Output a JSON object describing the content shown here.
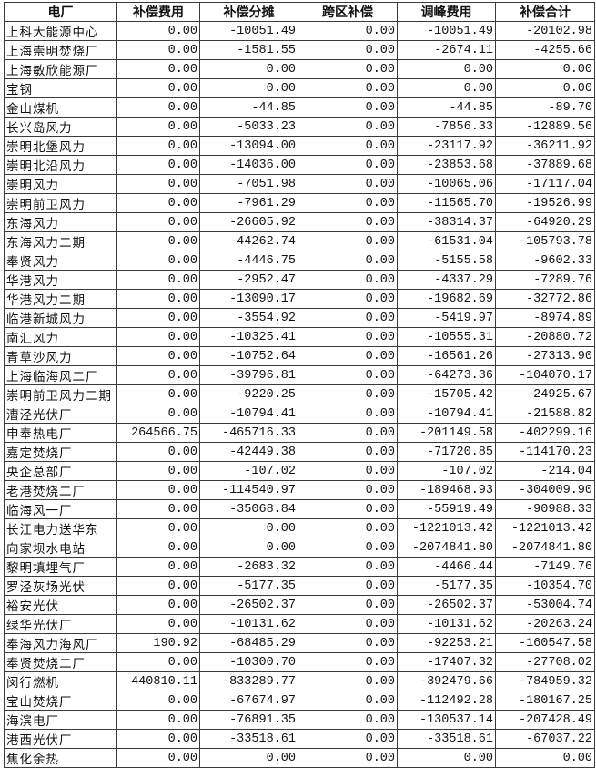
{
  "headers": [
    "电厂",
    "补偿费用",
    "补偿分摊",
    "跨区补偿",
    "调峰费用",
    "补偿合计"
  ],
  "rows": [
    [
      "上科大能源中心",
      "0.00",
      "-10051.49",
      "0.00",
      "-10051.49",
      "-20102.98"
    ],
    [
      "上海崇明焚烧厂",
      "0.00",
      "-1581.55",
      "0.00",
      "-2674.11",
      "-4255.66"
    ],
    [
      "上海敏欣能源厂",
      "0.00",
      "0.00",
      "0.00",
      "0.00",
      "0.00"
    ],
    [
      "宝钢",
      "0.00",
      "0.00",
      "0.00",
      "0.00",
      "0.00"
    ],
    [
      "金山煤机",
      "0.00",
      "-44.85",
      "0.00",
      "-44.85",
      "-89.70"
    ],
    [
      "长兴岛风力",
      "0.00",
      "-5033.23",
      "0.00",
      "-7856.33",
      "-12889.56"
    ],
    [
      "崇明北堡风力",
      "0.00",
      "-13094.00",
      "0.00",
      "-23117.92",
      "-36211.92"
    ],
    [
      "崇明北沿风力",
      "0.00",
      "-14036.00",
      "0.00",
      "-23853.68",
      "-37889.68"
    ],
    [
      "崇明风力",
      "0.00",
      "-7051.98",
      "0.00",
      "-10065.06",
      "-17117.04"
    ],
    [
      "崇明前卫风力",
      "0.00",
      "-7961.29",
      "0.00",
      "-11565.70",
      "-19526.99"
    ],
    [
      "东海风力",
      "0.00",
      "-26605.92",
      "0.00",
      "-38314.37",
      "-64920.29"
    ],
    [
      "东海风力二期",
      "0.00",
      "-44262.74",
      "0.00",
      "-61531.04",
      "-105793.78"
    ],
    [
      "奉贤风力",
      "0.00",
      "-4446.75",
      "0.00",
      "-5155.58",
      "-9602.33"
    ],
    [
      "华港风力",
      "0.00",
      "-2952.47",
      "0.00",
      "-4337.29",
      "-7289.76"
    ],
    [
      "华港风力二期",
      "0.00",
      "-13090.17",
      "0.00",
      "-19682.69",
      "-32772.86"
    ],
    [
      "临港新城风力",
      "0.00",
      "-3554.92",
      "0.00",
      "-5419.97",
      "-8974.89"
    ],
    [
      "南汇风力",
      "0.00",
      "-10325.41",
      "0.00",
      "-10555.31",
      "-20880.72"
    ],
    [
      "青草沙风力",
      "0.00",
      "-10752.64",
      "0.00",
      "-16561.26",
      "-27313.90"
    ],
    [
      "上海临海风二厂",
      "0.00",
      "-39796.81",
      "0.00",
      "-64273.36",
      "-104070.17"
    ],
    [
      "崇明前卫风力二期",
      "0.00",
      "-9220.25",
      "0.00",
      "-15705.42",
      "-24925.67"
    ],
    [
      "漕泾光伏厂",
      "0.00",
      "-10794.41",
      "0.00",
      "-10794.41",
      "-21588.82"
    ],
    [
      "申奉热电厂",
      "264566.75",
      "-465716.33",
      "0.00",
      "-201149.58",
      "-402299.16"
    ],
    [
      "嘉定焚烧厂",
      "0.00",
      "-42449.38",
      "0.00",
      "-71720.85",
      "-114170.23"
    ],
    [
      "央企总部厂",
      "0.00",
      "-107.02",
      "0.00",
      "-107.02",
      "-214.04"
    ],
    [
      "老港焚烧二厂",
      "0.00",
      "-114540.97",
      "0.00",
      "-189468.93",
      "-304009.90"
    ],
    [
      "临海风一厂",
      "0.00",
      "-35068.84",
      "0.00",
      "-55919.49",
      "-90988.33"
    ],
    [
      "长江电力送华东",
      "0.00",
      "0.00",
      "0.00",
      "-1221013.42",
      "-1221013.42"
    ],
    [
      "向家坝水电站",
      "0.00",
      "0.00",
      "0.00",
      "-2074841.80",
      "-2074841.80"
    ],
    [
      "黎明填埋气厂",
      "0.00",
      "-2683.32",
      "0.00",
      "-4466.44",
      "-7149.76"
    ],
    [
      "罗泾灰场光伏",
      "0.00",
      "-5177.35",
      "0.00",
      "-5177.35",
      "-10354.70"
    ],
    [
      "裕安光伏",
      "0.00",
      "-26502.37",
      "0.00",
      "-26502.37",
      "-53004.74"
    ],
    [
      "绿华光伏厂",
      "0.00",
      "-10131.62",
      "0.00",
      "-10131.62",
      "-20263.24"
    ],
    [
      "奉海风力海风厂",
      "190.92",
      "-68485.29",
      "0.00",
      "-92253.21",
      "-160547.58"
    ],
    [
      "奉贤焚烧二厂",
      "0.00",
      "-10300.70",
      "0.00",
      "-17407.32",
      "-27708.02"
    ],
    [
      "闵行燃机",
      "440810.11",
      "-833289.77",
      "0.00",
      "-392479.66",
      "-784959.32"
    ],
    [
      "宝山焚烧厂",
      "0.00",
      "-67674.97",
      "0.00",
      "-112492.28",
      "-180167.25"
    ],
    [
      "海滨电厂",
      "0.00",
      "-76891.35",
      "0.00",
      "-130537.14",
      "-207428.49"
    ],
    [
      "港西光伏厂",
      "0.00",
      "-33518.61",
      "0.00",
      "-33518.61",
      "-67037.22"
    ],
    [
      "焦化余热",
      "0.00",
      "0.00",
      "0.00",
      "0.00",
      "0.00"
    ]
  ]
}
